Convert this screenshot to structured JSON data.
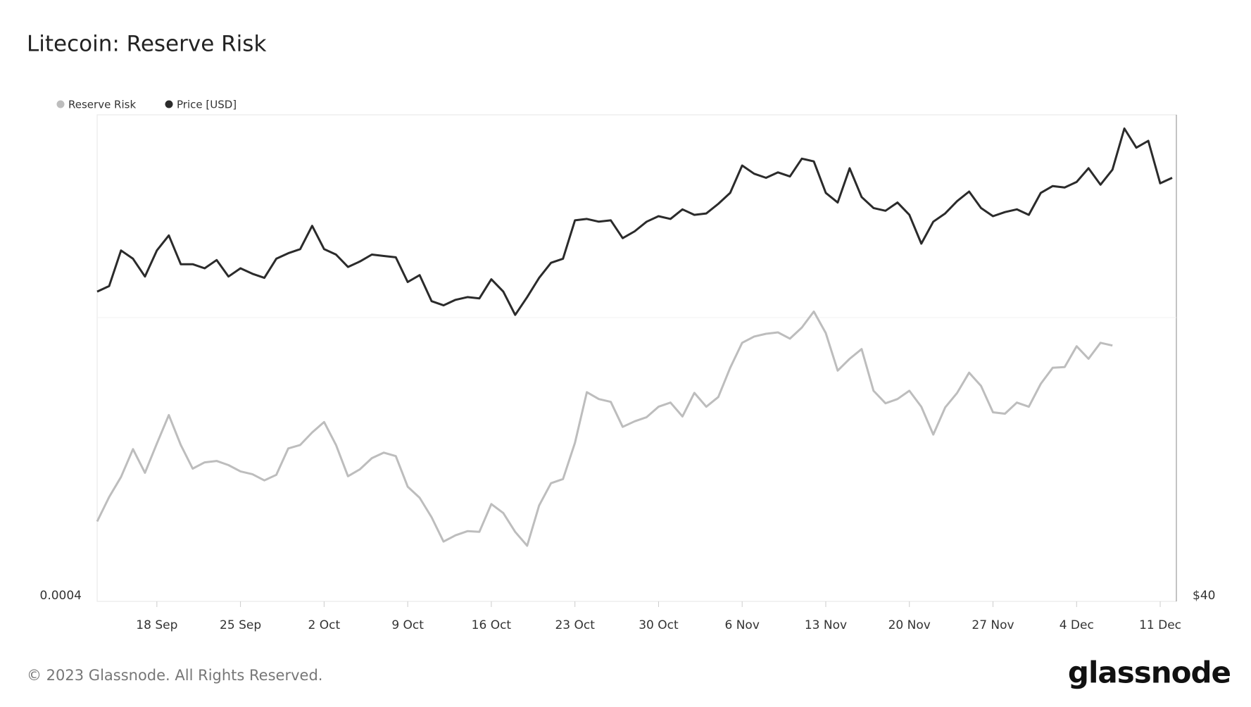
{
  "chart_data": {
    "type": "line",
    "title": "Litecoin: Reserve Risk",
    "categories": [
      null,
      null,
      null,
      null,
      null,
      "18 Sep",
      null,
      null,
      null,
      null,
      null,
      null,
      "25 Sep",
      null,
      null,
      null,
      null,
      null,
      null,
      "2 Oct",
      null,
      null,
      null,
      null,
      null,
      null,
      "9 Oct",
      null,
      null,
      null,
      null,
      null,
      null,
      "16 Oct",
      null,
      null,
      null,
      null,
      null,
      null,
      "23 Oct",
      null,
      null,
      null,
      null,
      null,
      null,
      "30 Oct",
      null,
      null,
      null,
      null,
      null,
      null,
      "6 Nov",
      null,
      null,
      null,
      null,
      null,
      null,
      "13 Nov",
      null,
      null,
      null,
      null,
      null,
      null,
      "20 Nov",
      null,
      null,
      null,
      null,
      null,
      null,
      "27 Nov",
      null,
      null,
      null,
      null,
      null,
      null,
      "4 Dec",
      null,
      null,
      null,
      null,
      null,
      null,
      "11 Dec",
      null
    ],
    "series": [
      {
        "name": "Reserve Risk",
        "color": "#bdbdbd",
        "axis": "y",
        "values": [
          0.000515,
          0.00055,
          0.000579,
          0.000619,
          0.000585,
          0.000627,
          0.000668,
          0.000625,
          0.000591,
          0.0006,
          0.000602,
          0.000596,
          0.000587,
          0.000583,
          0.000574,
          0.000582,
          0.00062,
          0.000625,
          0.000643,
          0.000658,
          0.000625,
          0.00058,
          0.00059,
          0.000606,
          0.000614,
          0.000609,
          0.000565,
          0.000549,
          0.000521,
          0.000486,
          0.000495,
          0.000501,
          0.0005,
          0.00054,
          0.000527,
          0.0005,
          0.00048,
          0.000538,
          0.00057,
          0.000576,
          0.000628,
          0.000701,
          0.000691,
          0.000687,
          0.000651,
          0.000659,
          0.000665,
          0.00068,
          0.000686,
          0.000666,
          0.0007,
          0.00068,
          0.000694,
          0.000736,
          0.000772,
          0.000781,
          0.000785,
          0.000787,
          0.000778,
          0.000794,
          0.000817,
          0.000786,
          0.000732,
          0.000749,
          0.000763,
          0.000703,
          0.000685,
          0.000691,
          0.000703,
          0.00068,
          0.00064,
          0.000679,
          0.0007,
          0.000729,
          0.00071,
          0.000672,
          0.00067,
          0.000686,
          0.00068,
          0.000713,
          0.000736,
          0.000737,
          0.000767,
          0.000749,
          0.000772,
          0.000768,
          null,
          null,
          null,
          null,
          null
        ]
      },
      {
        "name": "Price [USD]",
        "color": "#2b2b2b",
        "axis": "y2",
        "values": [
          62.6,
          63.0,
          65.6,
          65.0,
          63.7,
          65.6,
          66.7,
          64.6,
          64.6,
          64.3,
          64.9,
          63.7,
          64.3,
          63.9,
          63.6,
          65.0,
          65.4,
          65.7,
          67.4,
          65.7,
          65.3,
          64.4,
          64.8,
          65.3,
          65.2,
          65.1,
          63.3,
          63.8,
          61.9,
          61.6,
          62.0,
          62.2,
          62.1,
          63.5,
          62.6,
          60.9,
          62.2,
          63.6,
          64.7,
          65.0,
          67.8,
          67.9,
          67.7,
          67.8,
          66.5,
          67.0,
          67.7,
          68.1,
          67.9,
          68.6,
          68.2,
          68.3,
          69.0,
          69.8,
          71.8,
          71.2,
          70.9,
          71.3,
          71.0,
          72.3,
          72.1,
          69.8,
          69.1,
          71.6,
          69.5,
          68.7,
          68.5,
          69.1,
          68.2,
          66.1,
          67.7,
          68.3,
          69.2,
          69.9,
          68.7,
          68.1,
          68.4,
          68.6,
          68.2,
          69.8,
          70.3,
          70.2,
          70.6,
          71.6,
          70.4,
          71.5,
          74.5,
          73.1,
          73.6,
          70.5,
          70.9
        ]
      }
    ],
    "ylim": [
      0.0004,
      0.0011
    ],
    "yticks": [
      0.0004
    ],
    "y2lim": [
      40,
      75.5
    ],
    "y2ticks": [
      {
        "value": 40,
        "label": "$40"
      }
    ],
    "legend": "top-left"
  },
  "footer": {
    "copyright": "© 2023 Glassnode. All Rights Reserved.",
    "logo": "glassnode"
  }
}
